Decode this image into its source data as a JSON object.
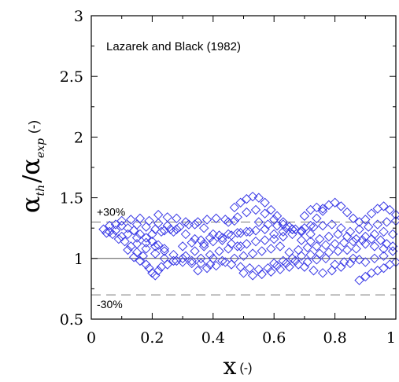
{
  "chart_data": {
    "type": "scatter",
    "title": "Lazarek and Black (1982)",
    "xlabel": "x",
    "xlabel_unit": "(-)",
    "ylabel_alpha": "α",
    "ylabel_num_sub": "th",
    "ylabel_slash": "/",
    "ylabel_den_sub": "exp",
    "ylabel_unit": "(-)",
    "xlim": [
      0,
      1
    ],
    "ylim": [
      0.5,
      3
    ],
    "xticks": [
      0,
      0.2,
      0.4,
      0.6,
      0.8,
      1
    ],
    "xtick_labels": [
      "0",
      "0.2",
      "0.4",
      "0.6",
      "0.8",
      "1"
    ],
    "yticks": [
      0.5,
      1,
      1.5,
      2,
      2.5,
      3
    ],
    "ytick_labels": [
      "0.5",
      "1",
      "1.5",
      "2",
      "2.5",
      "3"
    ],
    "reference_lines": [
      {
        "y": 1.0,
        "style": "solid"
      },
      {
        "y": 1.3,
        "style": "dashed",
        "label": "+30%"
      },
      {
        "y": 0.7,
        "style": "dashed",
        "label": "-30%"
      }
    ],
    "marker": "diamond",
    "marker_color": "#3a3ae6",
    "series": [
      {
        "values": [
          [
            0.04,
            1.24
          ],
          [
            0.05,
            1.21
          ],
          [
            0.06,
            1.22
          ],
          [
            0.07,
            1.2
          ],
          [
            0.08,
            1.23
          ],
          [
            0.09,
            1.16
          ],
          [
            0.1,
            1.18
          ],
          [
            0.11,
            1.14
          ],
          [
            0.12,
            1.07
          ],
          [
            0.13,
            1.1
          ],
          [
            0.14,
            1.01
          ],
          [
            0.15,
            1.05
          ],
          [
            0.16,
            0.98
          ],
          [
            0.17,
            1.02
          ],
          [
            0.18,
            0.95
          ],
          [
            0.19,
            0.92
          ],
          [
            0.2,
            0.88
          ],
          [
            0.21,
            0.86
          ],
          [
            0.22,
            0.9
          ],
          [
            0.23,
            0.93
          ],
          [
            0.06,
            1.27
          ],
          [
            0.08,
            1.28
          ],
          [
            0.1,
            1.27
          ],
          [
            0.12,
            1.25
          ],
          [
            0.14,
            1.23
          ],
          [
            0.16,
            1.2
          ],
          [
            0.18,
            1.17
          ],
          [
            0.2,
            1.14
          ],
          [
            0.22,
            1.11
          ],
          [
            0.24,
            1.08
          ],
          [
            0.1,
            1.31
          ],
          [
            0.13,
            1.32
          ],
          [
            0.16,
            1.33
          ],
          [
            0.19,
            1.31
          ],
          [
            0.22,
            1.29
          ],
          [
            0.25,
            1.27
          ],
          [
            0.28,
            1.24
          ],
          [
            0.31,
            1.2
          ],
          [
            0.34,
            1.16
          ],
          [
            0.37,
            1.12
          ],
          [
            0.12,
            1.2
          ],
          [
            0.15,
            1.17
          ],
          [
            0.18,
            1.13
          ],
          [
            0.21,
            1.1
          ],
          [
            0.24,
            1.06
          ],
          [
            0.27,
            1.03
          ],
          [
            0.3,
            1.0
          ],
          [
            0.33,
            0.98
          ],
          [
            0.36,
            0.96
          ],
          [
            0.39,
            0.95
          ],
          [
            0.22,
            1.36
          ],
          [
            0.25,
            1.34
          ],
          [
            0.28,
            1.33
          ],
          [
            0.31,
            1.3
          ],
          [
            0.34,
            1.28
          ],
          [
            0.37,
            1.25
          ],
          [
            0.4,
            1.2
          ],
          [
            0.43,
            1.15
          ],
          [
            0.46,
            1.12
          ],
          [
            0.49,
            1.1
          ],
          [
            0.25,
            0.95
          ],
          [
            0.28,
            0.98
          ],
          [
            0.31,
            1.02
          ],
          [
            0.34,
            1.06
          ],
          [
            0.37,
            1.1
          ],
          [
            0.4,
            1.14
          ],
          [
            0.43,
            1.17
          ],
          [
            0.46,
            1.19
          ],
          [
            0.49,
            1.21
          ],
          [
            0.52,
            1.22
          ],
          [
            0.47,
            1.42
          ],
          [
            0.49,
            1.46
          ],
          [
            0.51,
            1.49
          ],
          [
            0.53,
            1.51
          ],
          [
            0.55,
            1.5
          ],
          [
            0.57,
            1.46
          ],
          [
            0.59,
            1.4
          ],
          [
            0.61,
            1.35
          ],
          [
            0.63,
            1.3
          ],
          [
            0.65,
            1.26
          ],
          [
            0.45,
            1.3
          ],
          [
            0.48,
            1.34
          ],
          [
            0.51,
            1.38
          ],
          [
            0.54,
            1.4
          ],
          [
            0.57,
            1.37
          ],
          [
            0.6,
            1.32
          ],
          [
            0.63,
            1.28
          ],
          [
            0.66,
            1.24
          ],
          [
            0.69,
            1.22
          ],
          [
            0.72,
            1.2
          ],
          [
            0.35,
            0.9
          ],
          [
            0.38,
            0.92
          ],
          [
            0.41,
            0.94
          ],
          [
            0.44,
            0.97
          ],
          [
            0.47,
            1.0
          ],
          [
            0.5,
            1.02
          ],
          [
            0.53,
            1.04
          ],
          [
            0.56,
            1.06
          ],
          [
            0.59,
            1.08
          ],
          [
            0.62,
            1.1
          ],
          [
            0.3,
            1.1
          ],
          [
            0.33,
            1.13
          ],
          [
            0.36,
            1.15
          ],
          [
            0.39,
            1.17
          ],
          [
            0.42,
            1.19
          ],
          [
            0.45,
            1.2
          ],
          [
            0.48,
            1.21
          ],
          [
            0.51,
            1.22
          ],
          [
            0.54,
            1.23
          ],
          [
            0.57,
            1.24
          ],
          [
            0.4,
            1.0
          ],
          [
            0.43,
            0.98
          ],
          [
            0.46,
            0.95
          ],
          [
            0.49,
            0.93
          ],
          [
            0.52,
            0.92
          ],
          [
            0.55,
            0.91
          ],
          [
            0.58,
            0.92
          ],
          [
            0.61,
            0.94
          ],
          [
            0.64,
            0.96
          ],
          [
            0.67,
            0.98
          ],
          [
            0.6,
            1.16
          ],
          [
            0.63,
            1.18
          ],
          [
            0.66,
            1.2
          ],
          [
            0.69,
            1.23
          ],
          [
            0.72,
            1.27
          ],
          [
            0.74,
            1.33
          ],
          [
            0.76,
            1.39
          ],
          [
            0.78,
            1.44
          ],
          [
            0.8,
            1.46
          ],
          [
            0.82,
            1.43
          ],
          [
            0.84,
            1.38
          ],
          [
            0.86,
            1.33
          ],
          [
            0.88,
            1.3
          ],
          [
            0.9,
            1.32
          ],
          [
            0.92,
            1.37
          ],
          [
            0.94,
            1.41
          ],
          [
            0.96,
            1.43
          ],
          [
            0.98,
            1.4
          ],
          [
            1.0,
            1.36
          ],
          [
            0.7,
            1.35
          ],
          [
            0.72,
            1.4
          ],
          [
            0.74,
            1.42
          ],
          [
            0.76,
            1.41
          ],
          [
            0.7,
            0.93
          ],
          [
            0.73,
            0.9
          ],
          [
            0.76,
            0.88
          ],
          [
            0.79,
            0.9
          ],
          [
            0.82,
            0.93
          ],
          [
            0.85,
            0.96
          ],
          [
            0.88,
            0.99
          ],
          [
            0.65,
            1.05
          ],
          [
            0.68,
            1.07
          ],
          [
            0.71,
            1.09
          ],
          [
            0.74,
            1.1
          ],
          [
            0.77,
            1.11
          ],
          [
            0.8,
            1.12
          ],
          [
            0.83,
            1.13
          ],
          [
            0.86,
            1.14
          ],
          [
            0.89,
            1.15
          ],
          [
            0.92,
            1.16
          ],
          [
            0.6,
            0.96
          ],
          [
            0.63,
            0.98
          ],
          [
            0.66,
            1.0
          ],
          [
            0.69,
            1.02
          ],
          [
            0.72,
            1.03
          ],
          [
            0.75,
            1.04
          ],
          [
            0.78,
            1.05
          ],
          [
            0.81,
            1.06
          ],
          [
            0.84,
            1.07
          ],
          [
            0.87,
            1.08
          ],
          [
            0.9,
            0.85
          ],
          [
            0.92,
            0.88
          ],
          [
            0.94,
            0.9
          ],
          [
            0.96,
            0.92
          ],
          [
            0.98,
            0.95
          ],
          [
            1.0,
            0.97
          ],
          [
            0.88,
            0.82
          ],
          [
            0.9,
            0.97
          ],
          [
            0.93,
            1.0
          ],
          [
            0.96,
            1.02
          ],
          [
            0.85,
            1.22
          ],
          [
            0.88,
            1.24
          ],
          [
            0.91,
            1.26
          ],
          [
            0.94,
            1.28
          ],
          [
            0.97,
            1.3
          ],
          [
            1.0,
            1.31
          ],
          [
            0.9,
            1.12
          ],
          [
            0.93,
            1.1
          ],
          [
            0.96,
            1.08
          ],
          [
            0.99,
            1.06
          ],
          [
            0.55,
            1.3
          ],
          [
            0.58,
            1.28
          ],
          [
            0.61,
            1.27
          ],
          [
            0.64,
            1.25
          ],
          [
            0.67,
            1.24
          ],
          [
            0.7,
            1.25
          ],
          [
            0.73,
            1.26
          ],
          [
            0.76,
            1.27
          ],
          [
            0.79,
            1.28
          ],
          [
            0.82,
            1.25
          ],
          [
            0.2,
            1.2
          ],
          [
            0.23,
            1.22
          ],
          [
            0.26,
            1.24
          ],
          [
            0.29,
            1.26
          ],
          [
            0.32,
            1.28
          ],
          [
            0.35,
            1.3
          ],
          [
            0.38,
            1.32
          ],
          [
            0.41,
            1.33
          ],
          [
            0.44,
            1.32
          ],
          [
            0.47,
            1.31
          ],
          [
            0.5,
            0.88
          ],
          [
            0.53,
            0.86
          ],
          [
            0.56,
            0.87
          ],
          [
            0.59,
            0.89
          ],
          [
            0.62,
            0.91
          ],
          [
            0.65,
            0.93
          ],
          [
            0.68,
            0.95
          ],
          [
            0.71,
            0.97
          ],
          [
            0.74,
            0.99
          ],
          [
            0.77,
            1.0
          ],
          [
            0.3,
            0.97
          ],
          [
            0.33,
            0.96
          ],
          [
            0.36,
            1.0
          ],
          [
            0.39,
            1.03
          ],
          [
            0.42,
            1.06
          ],
          [
            0.45,
            1.08
          ],
          [
            0.48,
            1.1
          ],
          [
            0.51,
            1.12
          ],
          [
            0.54,
            1.14
          ],
          [
            0.57,
            1.15
          ],
          [
            0.6,
            1.2
          ],
          [
            0.63,
            1.22
          ],
          [
            0.66,
            1.24
          ],
          [
            0.69,
            1.15
          ],
          [
            0.72,
            1.14
          ],
          [
            0.75,
            1.16
          ],
          [
            0.78,
            1.18
          ],
          [
            0.81,
            1.2
          ],
          [
            0.84,
            1.18
          ],
          [
            0.87,
            1.16
          ],
          [
            0.9,
            1.18
          ],
          [
            0.93,
            1.2
          ],
          [
            0.96,
            1.22
          ],
          [
            0.99,
            1.2
          ],
          [
            0.95,
            1.15
          ],
          [
            0.97,
            1.12
          ],
          [
            0.99,
            1.1
          ],
          [
            0.8,
            0.95
          ],
          [
            0.83,
            0.97
          ],
          [
            0.86,
            1.0
          ],
          [
            0.15,
            1.12
          ],
          [
            0.18,
            1.08
          ],
          [
            0.21,
            1.04
          ],
          [
            0.24,
            1.0
          ],
          [
            0.27,
            0.98
          ],
          [
            0.15,
            1.28
          ],
          [
            0.18,
            1.26
          ],
          [
            0.21,
            1.24
          ],
          [
            0.24,
            1.23
          ],
          [
            0.27,
            1.22
          ]
        ]
      }
    ]
  }
}
